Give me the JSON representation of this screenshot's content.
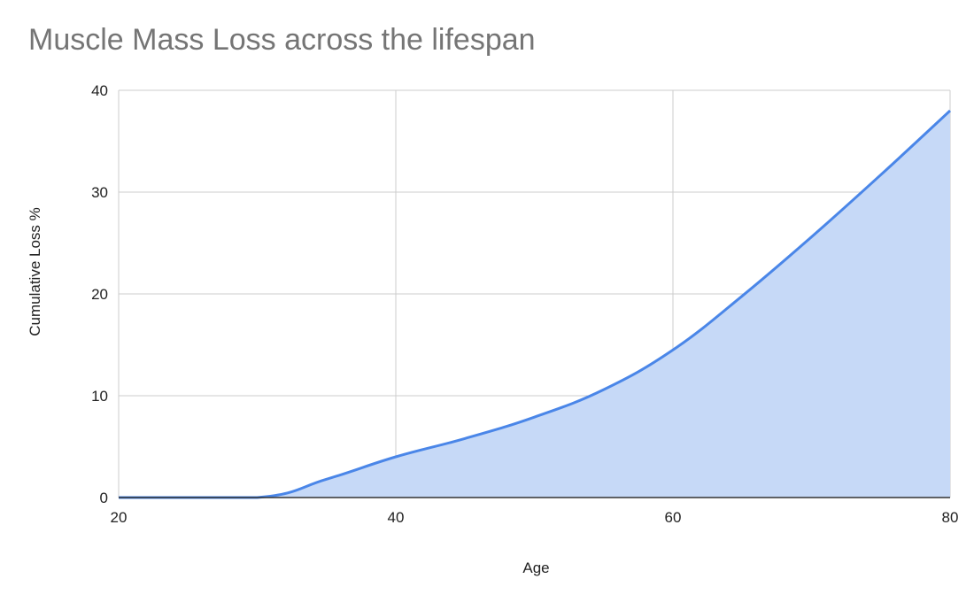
{
  "chart_data": {
    "type": "area",
    "title": "Muscle Mass Loss across the lifespan",
    "xlabel": "Age",
    "ylabel": "Cumulative Loss %",
    "xlim": [
      20,
      80
    ],
    "ylim": [
      0,
      40
    ],
    "xticks": [
      20,
      40,
      60,
      80
    ],
    "yticks": [
      0,
      10,
      20,
      30,
      40
    ],
    "grid": true,
    "legend": "none",
    "series": [
      {
        "x": [
          20,
          30,
          35,
          40,
          45,
          50,
          55,
          60,
          65,
          70,
          75,
          80
        ],
        "values": [
          0,
          0,
          1.8,
          4,
          5.8,
          7.9,
          10.6,
          14.5,
          19.8,
          25.6,
          31.7,
          38
        ]
      }
    ],
    "colors": {
      "line": "#4a86e8",
      "fill": "#c6d9f7",
      "grid": "#cccccc",
      "baseline": "#333333"
    }
  }
}
